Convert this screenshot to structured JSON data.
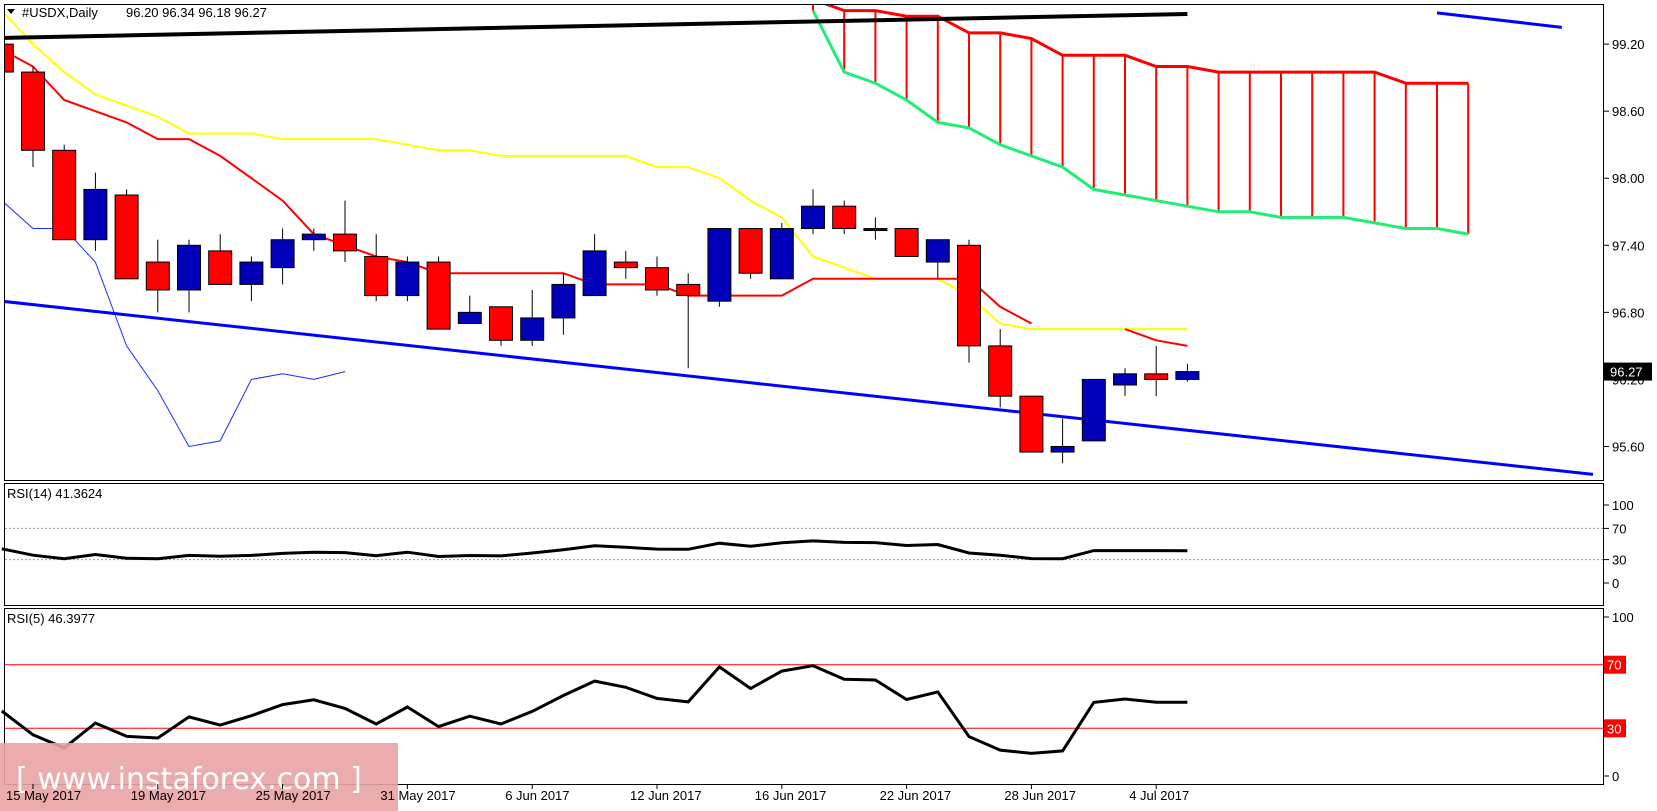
{
  "header": {
    "symbol": "#USDX,Daily",
    "ohlc": "96.20 96.34 96.18 96.27"
  },
  "price_axis": {
    "ticks": [
      95.6,
      96.2,
      96.8,
      97.4,
      98.0,
      98.6,
      99.2
    ],
    "tick_labels": [
      "95.60",
      "96.20",
      "96.80",
      "97.40",
      "98.00",
      "98.60",
      "99.20"
    ],
    "current_price_label": "96.27"
  },
  "time_axis": {
    "labels": [
      {
        "text": "15 May 2017",
        "bar": 0
      },
      {
        "text": "19 May 2017",
        "bar": 4
      },
      {
        "text": "25 May 2017",
        "bar": 8
      },
      {
        "text": "31 May 2017",
        "bar": 12
      },
      {
        "text": "6 Jun 2017",
        "bar": 16
      },
      {
        "text": "12 Jun 2017",
        "bar": 20
      },
      {
        "text": "16 Jun 2017",
        "bar": 24
      },
      {
        "text": "22 Jun 2017",
        "bar": 28
      },
      {
        "text": "28 Jun 2017",
        "bar": 32
      },
      {
        "text": "4 Jul 2017",
        "bar": 36
      }
    ]
  },
  "rsi14": {
    "label": "RSI(14) 41.3624",
    "levels": [
      0,
      30,
      70,
      100
    ],
    "level_labels": [
      "0",
      "30",
      "70",
      "100"
    ]
  },
  "rsi5": {
    "label": "RSI(5) 46.3977",
    "levels": [
      0,
      30,
      70,
      100
    ],
    "level_labels": [
      "0",
      "30",
      "70",
      "100"
    ],
    "marked_levels": [
      "30",
      "70"
    ]
  },
  "watermark": {
    "text": "[ www.instaforex.com ]"
  },
  "colors": {
    "bull": "#0000b8",
    "bear": "#ff0000",
    "tenkan": "#ff0000",
    "kijun": "#ffff00",
    "senkou_a": "#ff0000",
    "senkou_b": "#22ee77",
    "chikou": "#1a2bff",
    "trendline_blue": "#0000ff",
    "trendline_black": "#000000",
    "rsi_line": "#000000",
    "level_red": "#ff0000"
  },
  "chart_data": {
    "type": "candlestick",
    "panels": [
      "price",
      "RSI(14)",
      "RSI(5)"
    ],
    "categories": [
      "2017-05-12",
      "2017-05-15",
      "2017-05-16",
      "2017-05-17",
      "2017-05-18",
      "2017-05-19",
      "2017-05-22",
      "2017-05-23",
      "2017-05-24",
      "2017-05-25",
      "2017-05-26",
      "2017-05-29",
      "2017-05-30",
      "2017-05-31",
      "2017-06-01",
      "2017-06-02",
      "2017-06-05",
      "2017-06-06",
      "2017-06-07",
      "2017-06-08",
      "2017-06-09",
      "2017-06-12",
      "2017-06-13",
      "2017-06-14",
      "2017-06-15",
      "2017-06-16",
      "2017-06-19",
      "2017-06-20",
      "2017-06-21",
      "2017-06-22",
      "2017-06-23",
      "2017-06-26",
      "2017-06-27",
      "2017-06-28",
      "2017-06-29",
      "2017-06-30",
      "2017-07-03",
      "2017-07-04",
      "2017-07-05",
      "2017-07-06"
    ],
    "x_offset_bars": -1,
    "ohlc": [
      [
        99.2,
        99.25,
        98.8,
        98.95
      ],
      [
        98.95,
        99.0,
        98.1,
        98.25
      ],
      [
        98.25,
        98.3,
        97.45,
        97.45
      ],
      [
        97.45,
        98.05,
        97.35,
        97.9
      ],
      [
        97.85,
        97.9,
        97.1,
        97.1
      ],
      [
        97.25,
        97.45,
        96.8,
        97.0
      ],
      [
        97.0,
        97.45,
        96.8,
        97.4
      ],
      [
        97.35,
        97.5,
        97.05,
        97.05
      ],
      [
        97.05,
        97.3,
        96.9,
        97.25
      ],
      [
        97.2,
        97.55,
        97.05,
        97.45
      ],
      [
        97.45,
        97.55,
        97.35,
        97.5
      ],
      [
        97.5,
        97.8,
        97.25,
        97.35
      ],
      [
        97.3,
        97.5,
        96.9,
        96.95
      ],
      [
        96.95,
        97.3,
        96.9,
        97.25
      ],
      [
        97.25,
        97.3,
        96.65,
        96.65
      ],
      [
        96.7,
        96.95,
        96.7,
        96.8
      ],
      [
        96.85,
        96.85,
        96.5,
        96.55
      ],
      [
        96.55,
        97.0,
        96.5,
        96.75
      ],
      [
        96.75,
        97.15,
        96.6,
        97.05
      ],
      [
        96.95,
        97.5,
        96.95,
        97.35
      ],
      [
        97.25,
        97.35,
        97.1,
        97.2
      ],
      [
        97.2,
        97.3,
        96.95,
        97.0
      ],
      [
        97.05,
        97.15,
        96.3,
        96.95
      ],
      [
        96.9,
        97.55,
        96.85,
        97.55
      ],
      [
        97.55,
        97.55,
        97.1,
        97.15
      ],
      [
        97.1,
        97.6,
        97.1,
        97.55
      ],
      [
        97.55,
        97.9,
        97.5,
        97.75
      ],
      [
        97.75,
        97.8,
        97.5,
        97.55
      ],
      [
        97.55,
        97.65,
        97.45,
        97.55
      ],
      [
        97.55,
        97.55,
        97.3,
        97.3
      ],
      [
        97.25,
        97.45,
        97.1,
        97.45
      ],
      [
        97.4,
        97.45,
        96.35,
        96.5
      ],
      [
        96.5,
        96.65,
        95.95,
        96.05
      ],
      [
        96.05,
        96.05,
        95.55,
        95.55
      ],
      [
        95.55,
        95.85,
        95.45,
        95.6
      ],
      [
        95.65,
        96.2,
        95.65,
        96.2
      ],
      [
        96.15,
        96.3,
        96.05,
        96.25
      ],
      [
        96.25,
        96.5,
        96.05,
        96.2
      ],
      [
        96.2,
        96.34,
        96.18,
        96.27
      ]
    ],
    "tenkan_sen": [
      99.15,
      99.0,
      98.7,
      98.6,
      98.5,
      98.35,
      98.35,
      98.2,
      98.0,
      97.8,
      97.5,
      97.4,
      97.3,
      97.25,
      97.15,
      97.15,
      97.15,
      97.15,
      97.15,
      97.05,
      97.05,
      97.05,
      96.95,
      96.95,
      96.95,
      96.95,
      97.1,
      97.1,
      97.1,
      97.1,
      97.1,
      97.1,
      96.85,
      96.7,
      null,
      null,
      96.65,
      96.55,
      96.5
    ],
    "kijun_sen": [
      99.5,
      99.2,
      98.95,
      98.75,
      98.65,
      98.55,
      98.4,
      98.4,
      98.4,
      98.35,
      98.35,
      98.35,
      98.35,
      98.3,
      98.25,
      98.25,
      98.2,
      98.2,
      98.2,
      98.2,
      98.2,
      98.1,
      98.1,
      98.0,
      97.8,
      97.65,
      97.3,
      97.2,
      97.1,
      97.1,
      97.1,
      96.95,
      96.7,
      96.65,
      96.65,
      96.65,
      96.65,
      96.65,
      96.65
    ],
    "senkou_span_a": [
      null,
      null,
      null,
      null,
      null,
      null,
      null,
      null,
      null,
      null,
      null,
      null,
      null,
      null,
      null,
      null,
      null,
      null,
      null,
      null,
      null,
      null,
      null,
      null,
      null,
      null,
      99.6,
      99.5,
      99.5,
      99.45,
      99.45,
      99.3,
      99.3,
      99.25,
      99.1,
      99.1,
      99.1,
      99.0,
      99.0,
      98.95,
      98.95,
      98.95,
      98.95,
      98.95,
      98.95,
      98.85,
      98.85,
      98.85
    ],
    "senkou_span_b": [
      null,
      null,
      null,
      null,
      null,
      null,
      null,
      null,
      null,
      null,
      null,
      null,
      null,
      null,
      null,
      null,
      null,
      null,
      null,
      null,
      null,
      null,
      null,
      null,
      null,
      null,
      99.5,
      98.95,
      98.85,
      98.7,
      98.5,
      98.45,
      98.3,
      98.2,
      98.1,
      97.9,
      97.85,
      97.8,
      97.75,
      97.7,
      97.7,
      97.65,
      97.65,
      97.65,
      97.6,
      97.55,
      97.55,
      97.5
    ],
    "chikou_span": [
      97.8,
      97.55,
      97.55,
      97.25,
      96.5,
      96.1,
      95.6,
      95.65,
      96.2,
      96.25,
      96.2,
      96.27
    ],
    "trendlines": [
      {
        "name": "Descending support",
        "from": [
          -1,
          96.93
        ],
        "to": [
          51,
          95.35
        ]
      },
      {
        "name": "Upper trendline",
        "from": [
          -1,
          99.25
        ],
        "to": [
          38,
          99.47
        ]
      },
      {
        "name": "Upper-right line",
        "from": [
          46,
          99.48
        ],
        "to": [
          50,
          99.35
        ]
      }
    ],
    "rsi14_values": [
      43.9,
      35.7,
      31.1,
      36.6,
      31.7,
      31.1,
      35.4,
      34.3,
      35.4,
      38.0,
      39.3,
      39.0,
      35.0,
      39.5,
      34.0,
      35.3,
      34.7,
      38.4,
      42.7,
      47.7,
      45.8,
      43.5,
      43.2,
      51.0,
      47.0,
      51.7,
      54.0,
      52.1,
      51.8,
      48.1,
      49.4,
      38.5,
      35.7,
      31.3,
      31.1,
      41.5,
      41.5,
      41.5,
      41.36
    ],
    "rsi5_values": [
      40.9,
      25.9,
      17.7,
      33.3,
      25.0,
      23.9,
      37.2,
      32.0,
      37.9,
      44.9,
      47.9,
      42.5,
      32.7,
      43.4,
      31.1,
      37.6,
      32.7,
      40.6,
      50.6,
      59.7,
      55.8,
      48.8,
      46.6,
      68.6,
      55.0,
      66.0,
      69.4,
      60.9,
      60.4,
      48.1,
      52.9,
      24.8,
      16.3,
      14.2,
      15.8,
      46.3,
      48.4,
      46.4,
      46.3977
    ],
    "price_ylim": [
      95.3,
      99.55
    ],
    "rsi_ylim": [
      0,
      100
    ]
  }
}
